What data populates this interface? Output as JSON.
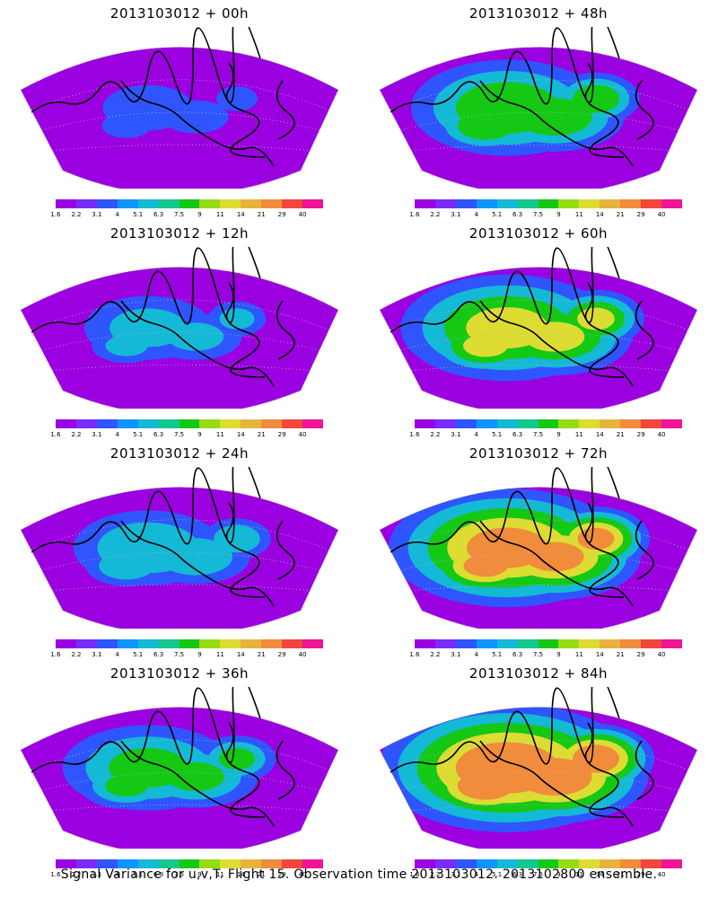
{
  "panels": [
    {
      "title": "2013103012 + 00h",
      "intensity": 0.2
    },
    {
      "title": "2013103012 + 48h",
      "intensity": 0.6
    },
    {
      "title": "2013103012 + 12h",
      "intensity": 0.3
    },
    {
      "title": "2013103012 + 60h",
      "intensity": 0.7
    },
    {
      "title": "2013103012 + 24h",
      "intensity": 0.4
    },
    {
      "title": "2013103012 + 72h",
      "intensity": 0.8
    },
    {
      "title": "2013103012 + 36h",
      "intensity": 0.5
    },
    {
      "title": "2013103012 + 84h",
      "intensity": 0.9
    }
  ],
  "colorbar": {
    "ticks": [
      "1.6",
      "2.2",
      "3.1",
      "4",
      "5.1",
      "6.3",
      "7.5",
      "9",
      "11",
      "14",
      "21",
      "29",
      "40"
    ],
    "colors": [
      "#9b00e0",
      "#7a2cff",
      "#2f55ff",
      "#0f95ff",
      "#14b9d6",
      "#12c88e",
      "#14c814",
      "#96dc14",
      "#dcdc32",
      "#e6b43c",
      "#f08c3c",
      "#f0463c",
      "#f01496"
    ]
  },
  "footer": "Signal Variance for u,v,T. Flight 15. Observation time 2013103012. 2013102800 ensemble."
}
